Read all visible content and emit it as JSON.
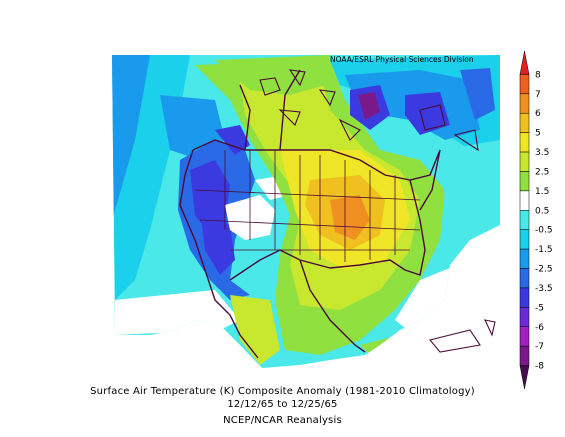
{
  "map": {
    "credit": "NOAA/ESRL Physical Sciences Division",
    "title_line1": "Surface Air Temperature (K) Composite Anomaly (1981-2010 Climatology)",
    "title_line2": "12/12/65  to 12/25/65",
    "title_line3": "NCEP/NCAR Reanalysis",
    "region": "North America",
    "variable": "Surface Air Temperature Anomaly",
    "units": "K"
  },
  "colorbar": {
    "levels": [
      "-8",
      "-7",
      "-6",
      "-5",
      "-3.5",
      "-2.5",
      "-1.5",
      "-0.5",
      "0.5",
      "1.5",
      "2.5",
      "3.5",
      "5",
      "6",
      "7",
      "8"
    ],
    "colors": [
      "#4a0a52",
      "#7a1a8a",
      "#a020c0",
      "#6a2ad8",
      "#3a3ae0",
      "#2a6ae6",
      "#1a9aec",
      "#1ad0ea",
      "#4ae8e8",
      "#ffffff",
      "#90e040",
      "#c8e830",
      "#f0e628",
      "#f0c020",
      "#f09020",
      "#f06020",
      "#e02020"
    ]
  },
  "legend_colors": {
    "cold_strong": "#7a1a8a",
    "cold": "#3a3ae0",
    "cool": "#1ad0ea",
    "neutral": "#ffffff",
    "warm": "#c8e830",
    "hot": "#f09020"
  }
}
